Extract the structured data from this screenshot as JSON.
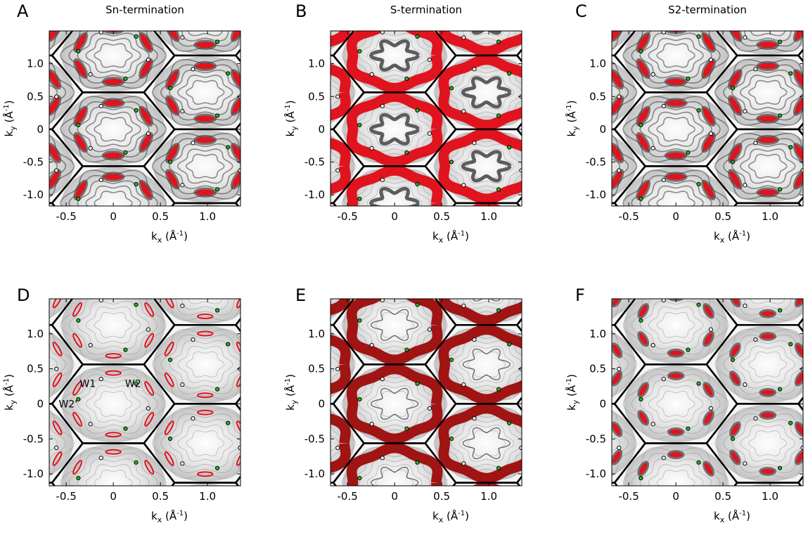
{
  "figure": {
    "colors": {
      "red": "#e0141e",
      "dark_red": "#a01414",
      "grey_light": "#d0d0d0",
      "grey_mid": "#8a8a8a",
      "grey_dark": "#3a3a3a",
      "green": "#22bb22",
      "black": "#000000"
    }
  },
  "chart_data": [
    {
      "panel": "A",
      "type": "heatmap",
      "title": "Sn-termination",
      "xlabel": "kx (Å-1)",
      "ylabel": "ky (Å-1)",
      "x_ticks": [
        "-0.5",
        "0",
        "0.5",
        "1.0"
      ],
      "y_ticks": [
        "1.0",
        "0.5",
        "0",
        "-0.5",
        "-1.0"
      ],
      "xlim": [
        -0.68,
        1.35
      ],
      "ylim": [
        -1.17,
        1.5
      ],
      "variant": "spots",
      "annotations": []
    },
    {
      "panel": "B",
      "type": "heatmap",
      "title": "S-termination",
      "xlabel": "kx (Å-1)",
      "ylabel": "ky (Å-1)",
      "x_ticks": [
        "-0.5",
        "0",
        "0.5",
        "1.0"
      ],
      "y_ticks": [
        "1.0",
        "0.5",
        "0",
        "-0.5",
        "-1.0"
      ],
      "xlim": [
        -0.68,
        1.35
      ],
      "ylim": [
        -1.17,
        1.5
      ],
      "variant": "ring",
      "annotations": []
    },
    {
      "panel": "C",
      "type": "heatmap",
      "title": "S2-termination",
      "xlabel": "kx (Å-1)",
      "ylabel": "ky (Å-1)",
      "x_ticks": [
        "-0.5",
        "0",
        "0.5",
        "1.0"
      ],
      "y_ticks": [
        "1.0",
        "0.5",
        "0",
        "-0.5",
        "-1.0"
      ],
      "xlim": [
        -0.68,
        1.35
      ],
      "ylim": [
        -1.17,
        1.5
      ],
      "variant": "mixed",
      "annotations": []
    },
    {
      "panel": "D",
      "type": "heatmap",
      "title": "",
      "xlabel": "kx (Å-1)",
      "ylabel": "ky (Å-1)",
      "x_ticks": [
        "-0.5",
        "0",
        "0.5",
        "1.0"
      ],
      "y_ticks": [
        "1.0",
        "0.5",
        "0",
        "-0.5",
        "-1.0"
      ],
      "xlim": [
        -0.68,
        1.35
      ],
      "ylim": [
        -1.17,
        1.5
      ],
      "variant": "thin",
      "annotations": [
        {
          "text": "W1",
          "x": -0.27,
          "y": 0.29
        },
        {
          "text": "W2",
          "x": 0.21,
          "y": 0.29
        },
        {
          "text": "W2'",
          "x": -0.48,
          "y": 0.0
        }
      ]
    },
    {
      "panel": "E",
      "type": "heatmap",
      "title": "",
      "xlabel": "kx (Å-1)",
      "ylabel": "ky (Å-1)",
      "x_ticks": [
        "-0.5",
        "0",
        "0.5",
        "1.0"
      ],
      "y_ticks": [
        "1.0",
        "0.5",
        "0",
        "-0.5",
        "-1.0"
      ],
      "xlim": [
        -0.68,
        1.35
      ],
      "ylim": [
        -1.17,
        1.5
      ],
      "variant": "ring_dark",
      "annotations": []
    },
    {
      "panel": "F",
      "type": "heatmap",
      "title": "",
      "xlabel": "kx (Å-1)",
      "ylabel": "ky (Å-1)",
      "x_ticks": [
        "-0.5",
        "0",
        "0.5",
        "1.0"
      ],
      "y_ticks": [
        "1.0",
        "0.5",
        "0",
        "-0.5",
        "-1.0"
      ],
      "xlim": [
        -0.68,
        1.35
      ],
      "ylim": [
        -1.17,
        1.5
      ],
      "variant": "small_spots",
      "annotations": []
    }
  ]
}
